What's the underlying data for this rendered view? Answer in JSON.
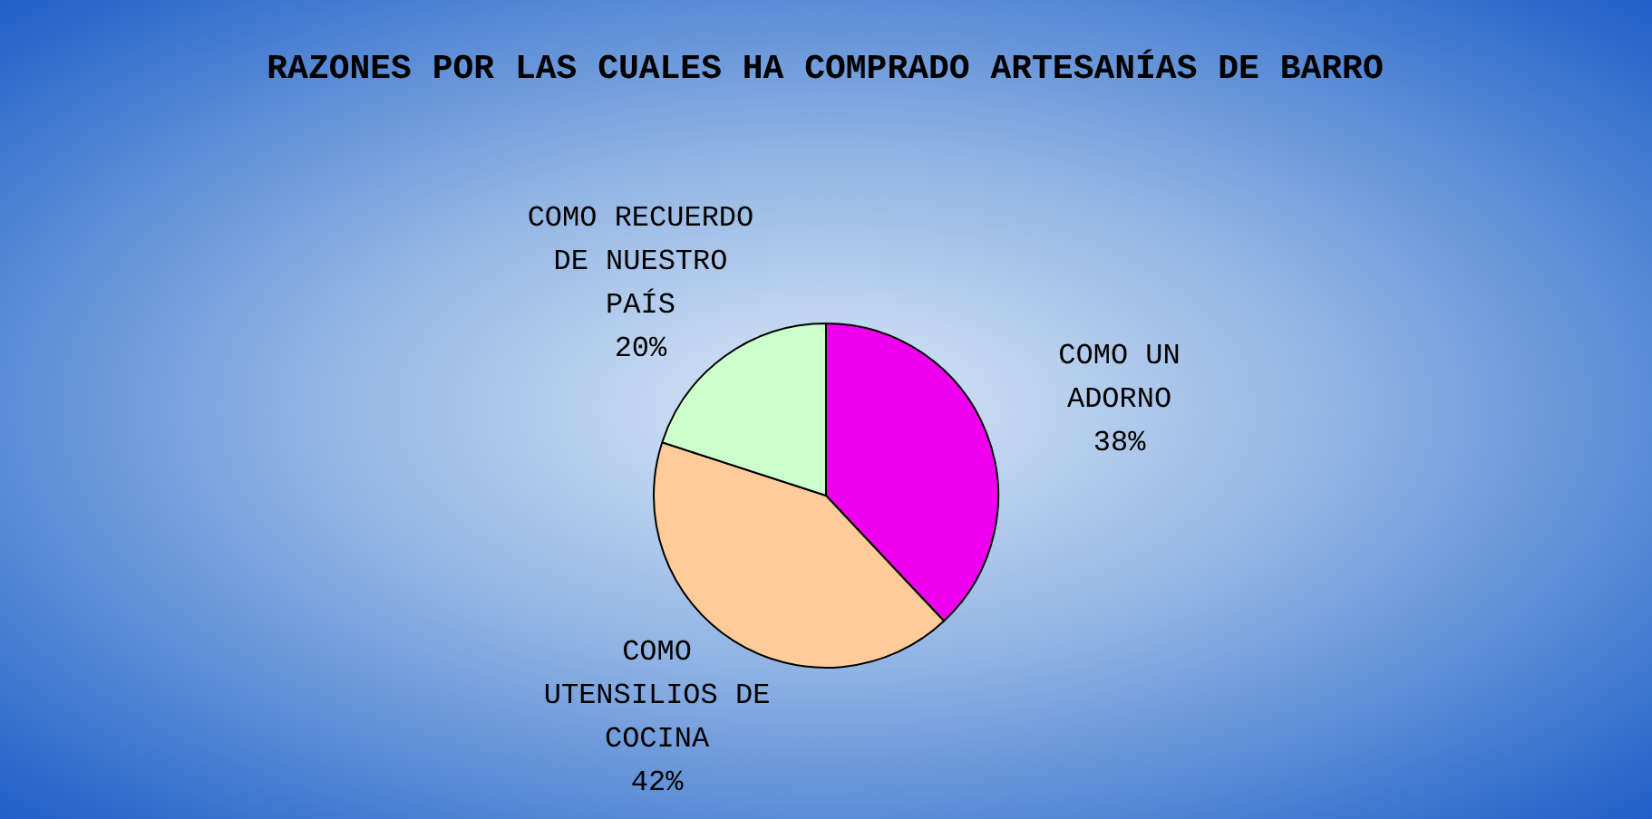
{
  "chart_data": {
    "type": "pie",
    "title": "RAZONES POR LAS CUALES HA COMPRADO ARTESANÍAS DE BARRO",
    "categories": [
      "COMO UN ADORNO",
      "COMO UTENSILIOS DE COCINA",
      "COMO RECUERDO DE NUESTRO PAÍS"
    ],
    "values": [
      38,
      42,
      20
    ],
    "colors": [
      "#ee00ee",
      "#ffcc99",
      "#ccffcc"
    ],
    "value_labels": [
      "38%",
      "42%",
      "20%"
    ],
    "legend": false
  }
}
